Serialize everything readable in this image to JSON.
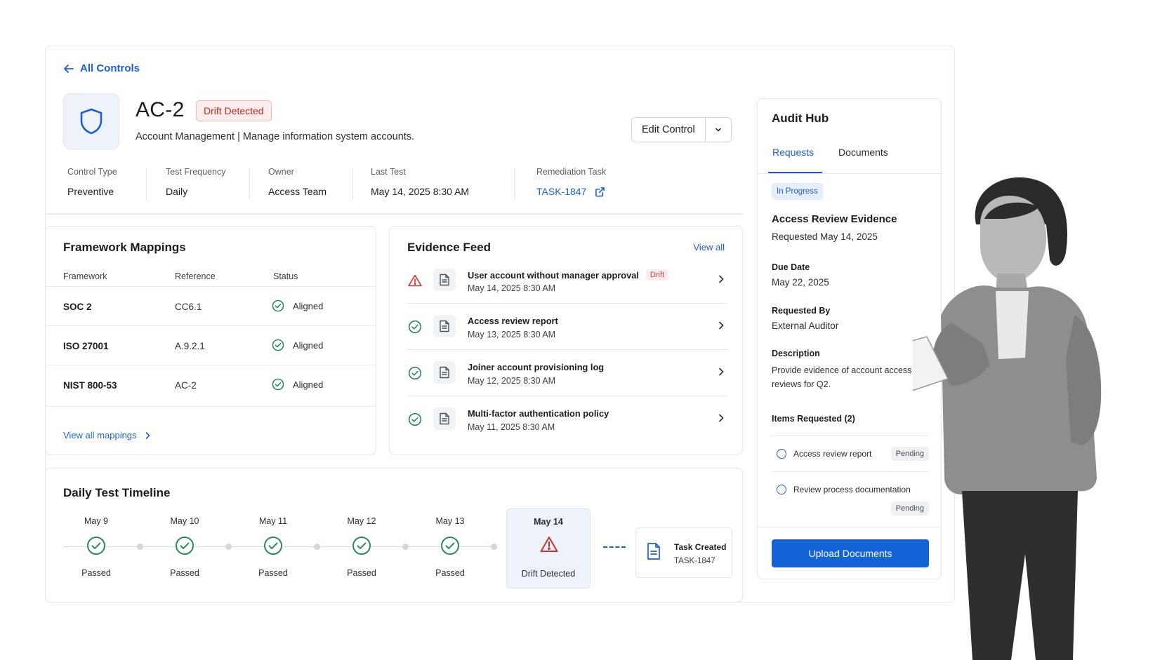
{
  "nav": {
    "back_label": "All Controls"
  },
  "control": {
    "id": "AC-2",
    "badge": "Drift Detected",
    "description": "Account Management | Manage information system accounts.",
    "edit_label": "Edit Control"
  },
  "meta": [
    {
      "label": "Control Type",
      "value": "Preventive"
    },
    {
      "label": "Test Frequency",
      "value": "Daily"
    },
    {
      "label": "Owner",
      "value": "Access Team"
    },
    {
      "label": "Last Test",
      "value": "May 14, 2025 8:30 AM"
    },
    {
      "label": "Remediation Task",
      "value": "TASK-1847"
    }
  ],
  "framework": {
    "title": "Framework Mappings",
    "headers": [
      "Framework",
      "Reference",
      "Status"
    ],
    "rows": [
      {
        "framework": "SOC 2",
        "reference": "CC6.1",
        "status": "Aligned"
      },
      {
        "framework": "ISO 27001",
        "reference": "A.9.2.1",
        "status": "Aligned"
      },
      {
        "framework": "NIST 800-53",
        "reference": "AC-2",
        "status": "Aligned"
      }
    ],
    "footer_link": "View all mappings"
  },
  "evidence": {
    "title": "Evidence Feed",
    "view_all": "View all",
    "items": [
      {
        "title": "User account without manager approval",
        "tag": "Drift",
        "time": "May 14, 2025 8:30 AM",
        "status": "warning"
      },
      {
        "title": "Access review report",
        "tag": "",
        "time": "May 13, 2025 8:30 AM",
        "status": "ok"
      },
      {
        "title": "Joiner account provisioning log",
        "tag": "",
        "time": "May 12, 2025 8:30 AM",
        "status": "ok"
      },
      {
        "title": "Multi-factor authentication policy",
        "tag": "",
        "time": "May 11, 2025 8:30 AM",
        "status": "ok"
      }
    ]
  },
  "timeline": {
    "title": "Daily Test Timeline",
    "days": [
      {
        "date": "May 9",
        "result": "Passed"
      },
      {
        "date": "May 10",
        "result": "Passed"
      },
      {
        "date": "May 11",
        "result": "Passed"
      },
      {
        "date": "May 12",
        "result": "Passed"
      },
      {
        "date": "May 13",
        "result": "Passed"
      },
      {
        "date": "May 14",
        "result": "Drift Detected"
      }
    ],
    "task": {
      "title": "Task Created",
      "id": "TASK-1847"
    }
  },
  "audit_hub": {
    "title": "Audit Hub",
    "tabs": [
      "Requests",
      "Documents"
    ],
    "active_tab": "Requests",
    "status": "In Progress",
    "request_title": "Access Review Evidence",
    "requested_on": "Requested May 14, 2025",
    "due_label": "Due Date",
    "due_value": "May 22, 2025",
    "by_label": "Requested By",
    "by_value": "External Auditor",
    "desc_label": "Description",
    "desc_value": "Provide evidence of account access reviews for Q2.",
    "items_label": "Items Requested (2)",
    "items": [
      {
        "name": "Access review report",
        "status": "Pending"
      },
      {
        "name": "Review process documentation",
        "status": "Pending"
      }
    ],
    "upload_label": "Upload Documents"
  },
  "colors": {
    "accent": "#1463d6",
    "link": "#1f5fcc",
    "success": "#2e8b57",
    "danger": "#d32f2f"
  },
  "icons": {
    "back": "arrow-left-icon",
    "control": "shield-icon",
    "ok": "check-circle-icon",
    "warn": "warning-triangle-icon",
    "doc": "document-icon",
    "external": "external-link-icon"
  }
}
